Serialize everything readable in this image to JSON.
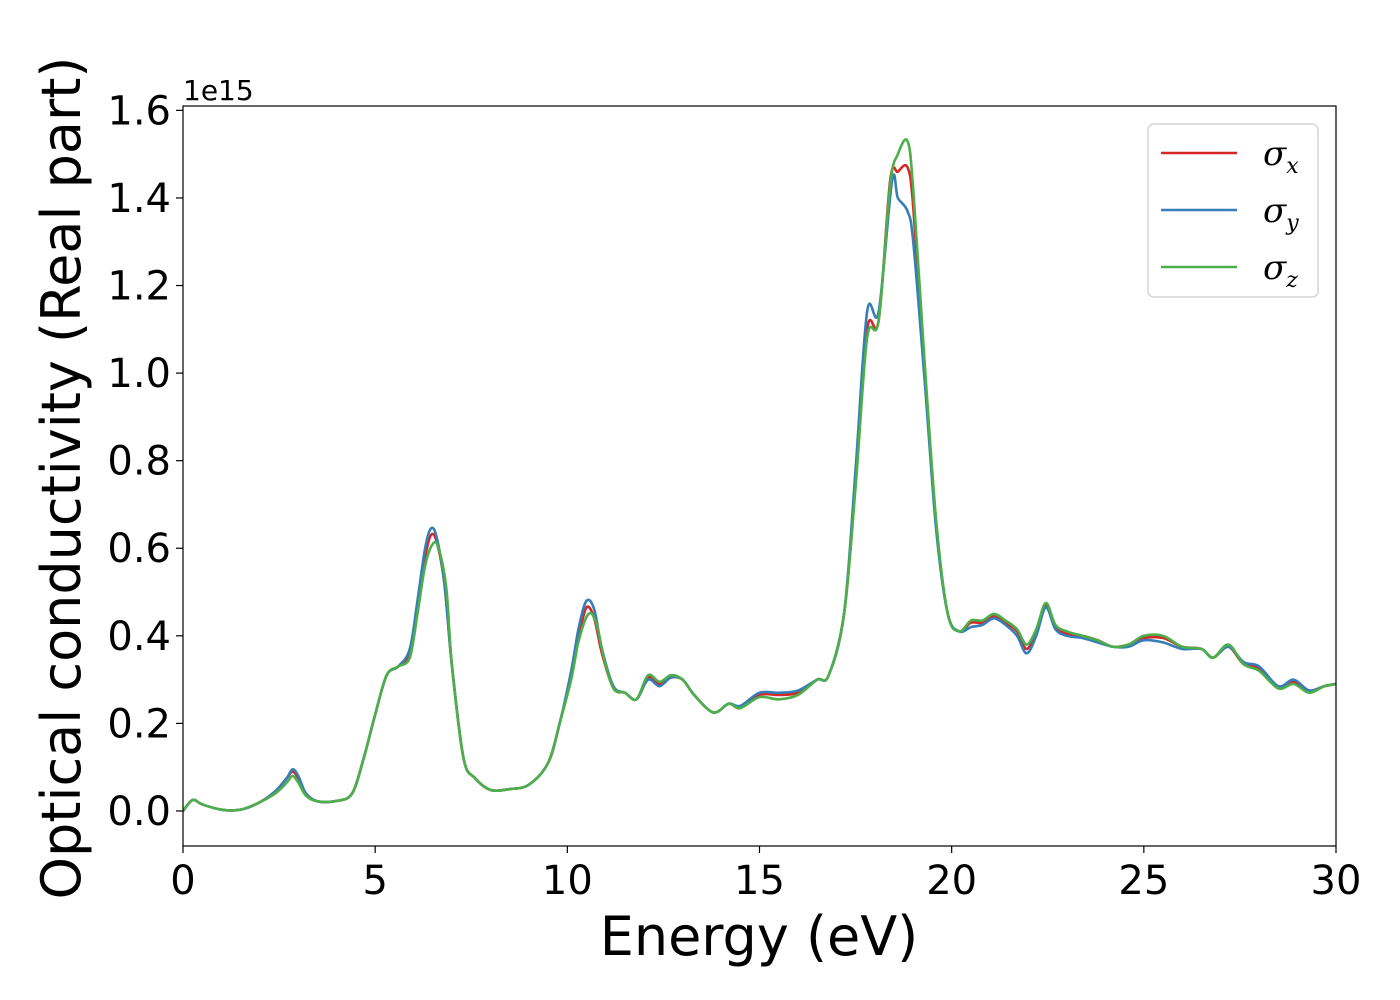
{
  "chart_data": {
    "type": "line",
    "title": "",
    "xlabel": "Energy (eV)",
    "ylabel": "Optical conductivity (Real part)",
    "y_offset_text": "1e15",
    "xlim": [
      0,
      30
    ],
    "ylim": [
      -0.08,
      1.61
    ],
    "xticks": [
      0,
      5,
      10,
      15,
      20,
      25,
      30
    ],
    "xtick_labels": [
      "0",
      "5",
      "10",
      "15",
      "20",
      "25",
      "30"
    ],
    "yticks": [
      0.0,
      0.2,
      0.4,
      0.6,
      0.8,
      1.0,
      1.2,
      1.4,
      1.6
    ],
    "ytick_labels": [
      "0.0",
      "0.2",
      "0.4",
      "0.6",
      "0.8",
      "1.0",
      "1.2",
      "1.4",
      "1.6"
    ],
    "grid": false,
    "legend_position": "top-right",
    "series": [
      {
        "name": "σx",
        "legend_symbol": "σ",
        "legend_subscript": "x",
        "color": "#d62728",
        "points": [
          [
            0,
            0.0
          ],
          [
            0.25,
            0.025
          ],
          [
            0.5,
            0.015
          ],
          [
            1,
            0.003
          ],
          [
            1.5,
            0.003
          ],
          [
            2,
            0.02
          ],
          [
            2.4,
            0.045
          ],
          [
            2.7,
            0.075
          ],
          [
            2.85,
            0.09
          ],
          [
            3,
            0.075
          ],
          [
            3.2,
            0.04
          ],
          [
            3.5,
            0.022
          ],
          [
            4,
            0.023
          ],
          [
            4.4,
            0.04
          ],
          [
            4.7,
            0.12
          ],
          [
            5.0,
            0.22
          ],
          [
            5.3,
            0.31
          ],
          [
            5.6,
            0.33
          ],
          [
            5.9,
            0.36
          ],
          [
            6.1,
            0.47
          ],
          [
            6.3,
            0.58
          ],
          [
            6.45,
            0.63
          ],
          [
            6.6,
            0.615
          ],
          [
            6.8,
            0.52
          ],
          [
            7.0,
            0.33
          ],
          [
            7.3,
            0.12
          ],
          [
            7.6,
            0.075
          ],
          [
            8.0,
            0.048
          ],
          [
            8.5,
            0.05
          ],
          [
            9.0,
            0.06
          ],
          [
            9.5,
            0.11
          ],
          [
            9.8,
            0.2
          ],
          [
            10.1,
            0.31
          ],
          [
            10.3,
            0.4
          ],
          [
            10.5,
            0.465
          ],
          [
            10.7,
            0.44
          ],
          [
            10.9,
            0.36
          ],
          [
            11.2,
            0.28
          ],
          [
            11.5,
            0.27
          ],
          [
            11.8,
            0.255
          ],
          [
            12.1,
            0.305
          ],
          [
            12.4,
            0.29
          ],
          [
            12.7,
            0.305
          ],
          [
            13.0,
            0.3
          ],
          [
            13.3,
            0.265
          ],
          [
            13.8,
            0.225
          ],
          [
            14.2,
            0.245
          ],
          [
            14.5,
            0.235
          ],
          [
            15.0,
            0.265
          ],
          [
            15.5,
            0.265
          ],
          [
            16.0,
            0.27
          ],
          [
            16.5,
            0.3
          ],
          [
            16.8,
            0.31
          ],
          [
            17.2,
            0.45
          ],
          [
            17.5,
            0.75
          ],
          [
            17.8,
            1.1
          ],
          [
            18.1,
            1.12
          ],
          [
            18.4,
            1.44
          ],
          [
            18.6,
            1.46
          ],
          [
            18.85,
            1.47
          ],
          [
            19.0,
            1.38
          ],
          [
            19.3,
            1.0
          ],
          [
            19.6,
            0.65
          ],
          [
            19.9,
            0.45
          ],
          [
            20.2,
            0.41
          ],
          [
            20.5,
            0.43
          ],
          [
            20.8,
            0.43
          ],
          [
            21.1,
            0.445
          ],
          [
            21.4,
            0.43
          ],
          [
            21.7,
            0.41
          ],
          [
            21.95,
            0.37
          ],
          [
            22.2,
            0.41
          ],
          [
            22.45,
            0.47
          ],
          [
            22.7,
            0.42
          ],
          [
            23.0,
            0.405
          ],
          [
            23.4,
            0.4
          ],
          [
            23.8,
            0.39
          ],
          [
            24.2,
            0.375
          ],
          [
            24.6,
            0.38
          ],
          [
            25.0,
            0.395
          ],
          [
            25.5,
            0.395
          ],
          [
            26.0,
            0.375
          ],
          [
            26.5,
            0.37
          ],
          [
            26.8,
            0.35
          ],
          [
            27.2,
            0.375
          ],
          [
            27.6,
            0.335
          ],
          [
            28.0,
            0.325
          ],
          [
            28.5,
            0.28
          ],
          [
            28.9,
            0.295
          ],
          [
            29.3,
            0.275
          ],
          [
            29.7,
            0.285
          ],
          [
            30,
            0.29
          ]
        ]
      },
      {
        "name": "σy",
        "legend_symbol": "σ",
        "legend_subscript": "y",
        "color": "#377eb8",
        "points": [
          [
            0,
            0.0
          ],
          [
            0.25,
            0.025
          ],
          [
            0.5,
            0.015
          ],
          [
            1,
            0.003
          ],
          [
            1.5,
            0.003
          ],
          [
            2,
            0.02
          ],
          [
            2.4,
            0.045
          ],
          [
            2.7,
            0.075
          ],
          [
            2.85,
            0.095
          ],
          [
            3,
            0.08
          ],
          [
            3.2,
            0.04
          ],
          [
            3.5,
            0.022
          ],
          [
            4,
            0.023
          ],
          [
            4.4,
            0.04
          ],
          [
            4.7,
            0.12
          ],
          [
            5.0,
            0.22
          ],
          [
            5.3,
            0.31
          ],
          [
            5.6,
            0.33
          ],
          [
            5.9,
            0.37
          ],
          [
            6.1,
            0.48
          ],
          [
            6.3,
            0.6
          ],
          [
            6.45,
            0.645
          ],
          [
            6.6,
            0.625
          ],
          [
            6.8,
            0.52
          ],
          [
            7.0,
            0.33
          ],
          [
            7.3,
            0.12
          ],
          [
            7.6,
            0.075
          ],
          [
            8.0,
            0.048
          ],
          [
            8.5,
            0.05
          ],
          [
            9.0,
            0.06
          ],
          [
            9.5,
            0.11
          ],
          [
            9.8,
            0.2
          ],
          [
            10.1,
            0.32
          ],
          [
            10.3,
            0.42
          ],
          [
            10.5,
            0.48
          ],
          [
            10.7,
            0.46
          ],
          [
            10.9,
            0.37
          ],
          [
            11.2,
            0.285
          ],
          [
            11.5,
            0.27
          ],
          [
            11.8,
            0.255
          ],
          [
            12.1,
            0.3
          ],
          [
            12.4,
            0.285
          ],
          [
            12.7,
            0.305
          ],
          [
            13.0,
            0.3
          ],
          [
            13.3,
            0.265
          ],
          [
            13.8,
            0.225
          ],
          [
            14.2,
            0.245
          ],
          [
            14.5,
            0.24
          ],
          [
            15.0,
            0.27
          ],
          [
            15.5,
            0.27
          ],
          [
            16.0,
            0.275
          ],
          [
            16.5,
            0.3
          ],
          [
            16.8,
            0.31
          ],
          [
            17.2,
            0.45
          ],
          [
            17.5,
            0.78
          ],
          [
            17.8,
            1.14
          ],
          [
            18.1,
            1.14
          ],
          [
            18.45,
            1.44
          ],
          [
            18.6,
            1.4
          ],
          [
            18.85,
            1.37
          ],
          [
            19.0,
            1.3
          ],
          [
            19.3,
            0.98
          ],
          [
            19.6,
            0.64
          ],
          [
            19.9,
            0.45
          ],
          [
            20.2,
            0.41
          ],
          [
            20.5,
            0.42
          ],
          [
            20.8,
            0.425
          ],
          [
            21.1,
            0.44
          ],
          [
            21.4,
            0.425
          ],
          [
            21.7,
            0.4
          ],
          [
            21.95,
            0.36
          ],
          [
            22.2,
            0.4
          ],
          [
            22.45,
            0.465
          ],
          [
            22.7,
            0.415
          ],
          [
            23.0,
            0.4
          ],
          [
            23.4,
            0.395
          ],
          [
            23.8,
            0.385
          ],
          [
            24.2,
            0.375
          ],
          [
            24.6,
            0.375
          ],
          [
            25.0,
            0.39
          ],
          [
            25.5,
            0.385
          ],
          [
            26.0,
            0.37
          ],
          [
            26.5,
            0.37
          ],
          [
            26.8,
            0.35
          ],
          [
            27.2,
            0.375
          ],
          [
            27.6,
            0.34
          ],
          [
            28.0,
            0.33
          ],
          [
            28.5,
            0.285
          ],
          [
            28.9,
            0.3
          ],
          [
            29.3,
            0.275
          ],
          [
            29.7,
            0.285
          ],
          [
            30,
            0.29
          ]
        ]
      },
      {
        "name": "σz",
        "legend_symbol": "σ",
        "legend_subscript": "z",
        "color": "#4daf4a",
        "points": [
          [
            0,
            0.0
          ],
          [
            0.25,
            0.025
          ],
          [
            0.5,
            0.015
          ],
          [
            1,
            0.003
          ],
          [
            1.5,
            0.003
          ],
          [
            2,
            0.02
          ],
          [
            2.4,
            0.04
          ],
          [
            2.7,
            0.065
          ],
          [
            2.85,
            0.08
          ],
          [
            3,
            0.065
          ],
          [
            3.2,
            0.035
          ],
          [
            3.5,
            0.022
          ],
          [
            4,
            0.023
          ],
          [
            4.4,
            0.04
          ],
          [
            4.7,
            0.12
          ],
          [
            5.0,
            0.22
          ],
          [
            5.3,
            0.31
          ],
          [
            5.6,
            0.33
          ],
          [
            5.9,
            0.35
          ],
          [
            6.1,
            0.45
          ],
          [
            6.3,
            0.56
          ],
          [
            6.5,
            0.61
          ],
          [
            6.65,
            0.6
          ],
          [
            6.85,
            0.51
          ],
          [
            7.0,
            0.33
          ],
          [
            7.3,
            0.12
          ],
          [
            7.6,
            0.075
          ],
          [
            8.0,
            0.048
          ],
          [
            8.5,
            0.05
          ],
          [
            9.0,
            0.06
          ],
          [
            9.5,
            0.11
          ],
          [
            9.8,
            0.2
          ],
          [
            10.1,
            0.3
          ],
          [
            10.3,
            0.39
          ],
          [
            10.55,
            0.45
          ],
          [
            10.75,
            0.43
          ],
          [
            10.95,
            0.35
          ],
          [
            11.2,
            0.28
          ],
          [
            11.5,
            0.27
          ],
          [
            11.8,
            0.255
          ],
          [
            12.1,
            0.31
          ],
          [
            12.4,
            0.295
          ],
          [
            12.7,
            0.31
          ],
          [
            13.0,
            0.3
          ],
          [
            13.3,
            0.265
          ],
          [
            13.8,
            0.225
          ],
          [
            14.2,
            0.245
          ],
          [
            14.5,
            0.235
          ],
          [
            15.0,
            0.26
          ],
          [
            15.5,
            0.255
          ],
          [
            16.0,
            0.265
          ],
          [
            16.5,
            0.3
          ],
          [
            16.8,
            0.31
          ],
          [
            17.2,
            0.45
          ],
          [
            17.5,
            0.74
          ],
          [
            17.8,
            1.08
          ],
          [
            18.1,
            1.12
          ],
          [
            18.4,
            1.43
          ],
          [
            18.6,
            1.5
          ],
          [
            18.85,
            1.53
          ],
          [
            19.0,
            1.42
          ],
          [
            19.3,
            1.02
          ],
          [
            19.6,
            0.66
          ],
          [
            19.9,
            0.45
          ],
          [
            20.2,
            0.41
          ],
          [
            20.5,
            0.435
          ],
          [
            20.8,
            0.435
          ],
          [
            21.1,
            0.45
          ],
          [
            21.4,
            0.435
          ],
          [
            21.7,
            0.415
          ],
          [
            21.95,
            0.38
          ],
          [
            22.2,
            0.415
          ],
          [
            22.45,
            0.475
          ],
          [
            22.7,
            0.425
          ],
          [
            23.0,
            0.41
          ],
          [
            23.4,
            0.4
          ],
          [
            23.8,
            0.39
          ],
          [
            24.2,
            0.375
          ],
          [
            24.6,
            0.38
          ],
          [
            25.0,
            0.4
          ],
          [
            25.5,
            0.4
          ],
          [
            26.0,
            0.375
          ],
          [
            26.5,
            0.37
          ],
          [
            26.8,
            0.35
          ],
          [
            27.2,
            0.38
          ],
          [
            27.6,
            0.335
          ],
          [
            28.0,
            0.32
          ],
          [
            28.5,
            0.28
          ],
          [
            28.9,
            0.29
          ],
          [
            29.3,
            0.27
          ],
          [
            29.7,
            0.285
          ],
          [
            30,
            0.29
          ]
        ]
      }
    ]
  }
}
